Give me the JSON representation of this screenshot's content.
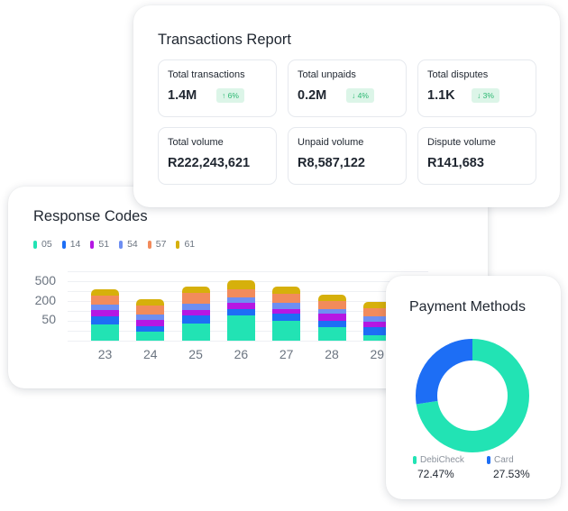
{
  "transactions_report": {
    "title": "Transactions Report",
    "stats": [
      {
        "label": "Total transactions",
        "value": "1.4M",
        "badge": "↑ 6%"
      },
      {
        "label": "Total unpaids",
        "value": "0.2M",
        "badge": "↓ 4%"
      },
      {
        "label": "Total disputes",
        "value": "1.1K",
        "badge": "↓ 3%"
      },
      {
        "label": "Total volume",
        "value": "R222,243,621"
      },
      {
        "label": "Unpaid volume",
        "value": "R8,587,122"
      },
      {
        "label": "Dispute volume",
        "value": "R141,683"
      }
    ]
  },
  "response_codes": {
    "title": "Response Codes",
    "legend": [
      {
        "code": "05",
        "color": "#22e3b4"
      },
      {
        "code": "14",
        "color": "#1d6ef5"
      },
      {
        "code": "51",
        "color": "#b517e3"
      },
      {
        "code": "54",
        "color": "#6e8ef2"
      },
      {
        "code": "57",
        "color": "#f28b5c"
      },
      {
        "code": "61",
        "color": "#d6b00b"
      }
    ]
  },
  "payment_methods": {
    "title": "Payment Methods",
    "items": [
      {
        "label": "DebiCheck",
        "value": "72.47%",
        "color": "#22e3b4"
      },
      {
        "label": "Card",
        "value": "27.53%",
        "color": "#1d6ef5"
      }
    ]
  },
  "chart_data": [
    {
      "type": "bar",
      "stacked": true,
      "title": "Response Codes",
      "categories": [
        "23",
        "24",
        "25",
        "26",
        "27",
        "28",
        "29"
      ],
      "ytick_labels": [
        "50",
        "200",
        "500"
      ],
      "series": [
        {
          "name": "05",
          "color": "#22e3b4",
          "values": [
            18,
            10,
            19,
            28,
            22,
            15,
            6
          ]
        },
        {
          "name": "14",
          "color": "#1d6ef5",
          "values": [
            9,
            6,
            9,
            7,
            8,
            7,
            9
          ]
        },
        {
          "name": "51",
          "color": "#b517e3",
          "values": [
            7,
            7,
            6,
            7,
            5,
            8,
            6
          ]
        },
        {
          "name": "54",
          "color": "#6e8ef2",
          "values": [
            6,
            6,
            7,
            6,
            7,
            5,
            6
          ]
        },
        {
          "name": "57",
          "color": "#f28b5c",
          "values": [
            10,
            10,
            12,
            9,
            10,
            9,
            9
          ]
        },
        {
          "name": "61",
          "color": "#d6b00b",
          "values": [
            7,
            7,
            7,
            10,
            8,
            7,
            7
          ]
        }
      ]
    },
    {
      "type": "pie",
      "donut": true,
      "title": "Payment Methods",
      "categories": [
        "DebiCheck",
        "Card"
      ],
      "values": [
        72.47,
        27.53
      ],
      "colors": [
        "#22e3b4",
        "#1d6ef5"
      ]
    }
  ]
}
